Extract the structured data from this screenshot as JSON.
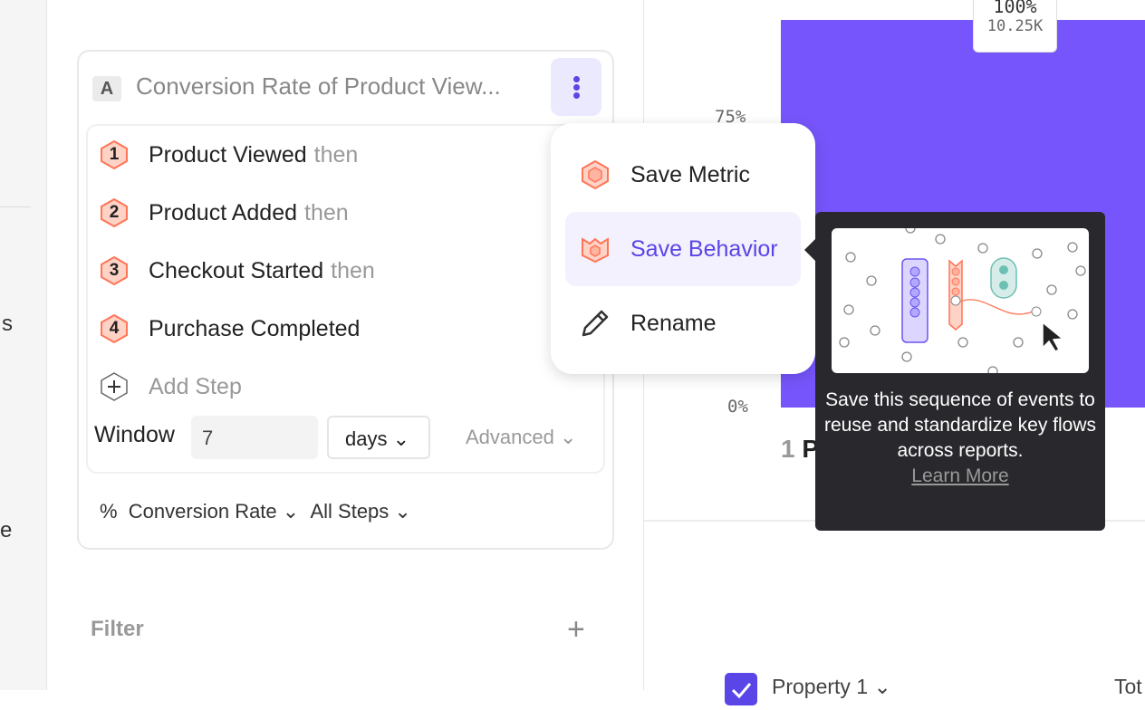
{
  "sidebar": {
    "cut_text_1": "s",
    "cut_text_2": "e"
  },
  "metric": {
    "letter": "A",
    "title": "Conversion Rate of Product View...",
    "steps": [
      {
        "num": "1",
        "name": "Product Viewed",
        "suffix": "then"
      },
      {
        "num": "2",
        "name": "Product Added",
        "suffix": "then"
      },
      {
        "num": "3",
        "name": "Checkout Started",
        "suffix": "then"
      },
      {
        "num": "4",
        "name": "Purchase Completed",
        "suffix": ""
      }
    ],
    "add_step": "Add Step",
    "window_label": "Window",
    "window_value": "7",
    "window_unit": "days",
    "advanced": "Advanced",
    "measure_symbol": "%",
    "measure": "Conversion Rate",
    "steps_filter": "All Steps"
  },
  "filter": {
    "label": "Filter"
  },
  "chart": {
    "ticks": [
      "75%",
      "0%"
    ],
    "bar_label_pct": "100%",
    "bar_label_count": "10.25K",
    "x_label_num": "1",
    "x_label_cut": "P",
    "bar_value": 1.0,
    "bar_color": "#7755fc"
  },
  "menu": {
    "items": [
      {
        "label": "Save Metric",
        "icon": "metric-hex-icon"
      },
      {
        "label": "Save Behavior",
        "icon": "behavior-icon"
      },
      {
        "label": "Rename",
        "icon": "pencil-icon"
      }
    ]
  },
  "tooltip": {
    "text": "Save this sequence of events to reuse and standardize key flows across reports.",
    "link": "Learn More"
  },
  "table": {
    "property": "Property 1",
    "total_cut": "Tot"
  },
  "colors": {
    "accent": "#5a45e6",
    "step": "#ff7557"
  }
}
